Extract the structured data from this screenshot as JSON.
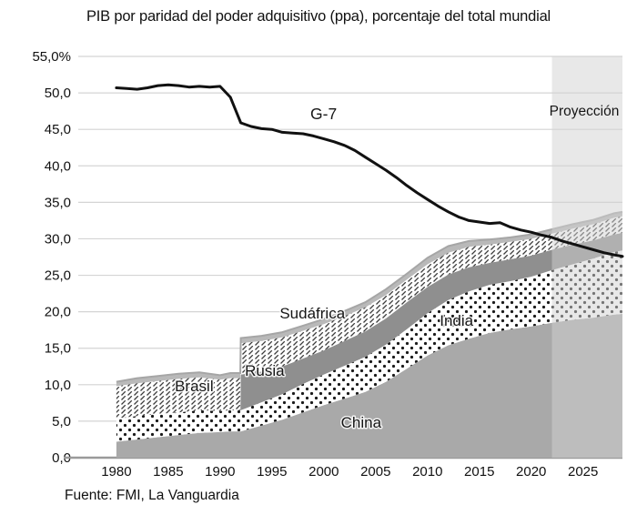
{
  "chart_data": {
    "type": "area",
    "title": "PIB por paridad del poder adquisitivo (ppa), porcentaje del total mundial",
    "source": "Fuente: FMI, La Vanguardia",
    "unit": "% del total mundial",
    "grid": true,
    "ylim": [
      0,
      55
    ],
    "xlim": [
      1976.5,
      2028.8
    ],
    "y_ticks": [
      55,
      50,
      45,
      40,
      35,
      30,
      25,
      20,
      15,
      10,
      5,
      0
    ],
    "y_tick_labels": [
      "55,0%",
      "50,0",
      "45,0",
      "40,0",
      "35,0",
      "30,0",
      "25,0",
      "20,0",
      "15,0",
      "10,0",
      "5,0",
      "0,0"
    ],
    "x_ticks": [
      1980,
      1985,
      1990,
      1995,
      2000,
      2005,
      2010,
      2015,
      2020,
      2025
    ],
    "x_tick_labels": [
      "1980",
      "1985",
      "1990",
      "1995",
      "2000",
      "2005",
      "2010",
      "2015",
      "2020",
      "2025"
    ],
    "grid_color": "#d4d4d4",
    "axis_color": "#9a9a9a",
    "top_edge_color": "#a6a6a6",
    "projection": {
      "label": "Proyección",
      "start_year": 2022,
      "band_fill": "rgba(210,210,210,0.5)"
    },
    "stacked_years": [
      1980,
      1982,
      1984,
      1986,
      1988,
      1990,
      1991,
      1991.95,
      1992,
      1994,
      1996,
      1998,
      2000,
      2002,
      2004,
      2006,
      2008,
      2010,
      2012,
      2014,
      2016,
      2018,
      2020,
      2022,
      2024,
      2026,
      2028,
      2028.8
    ],
    "stacked_series": [
      {
        "id": "china",
        "name": "China",
        "style": "solid",
        "fill": "#a9a9a9",
        "label_anchor": {
          "year": 2003.6,
          "value": 4.1
        },
        "values": [
          2.2,
          2.5,
          2.8,
          3.1,
          3.4,
          3.5,
          3.6,
          3.6,
          3.6,
          4.4,
          5.2,
          6.2,
          7.2,
          8.1,
          9.0,
          10.4,
          12.2,
          14.0,
          15.4,
          16.3,
          17.1,
          17.6,
          18.0,
          18.5,
          18.9,
          19.2,
          19.6,
          19.7
        ]
      },
      {
        "id": "india",
        "name": "India",
        "style": "dots",
        "fill": "#ffffff",
        "dot_color": "#1a1a1a",
        "label_anchor": {
          "year": 2012.8,
          "value": 18.1
        },
        "values": [
          3.2,
          3.2,
          3.2,
          3.1,
          3.1,
          2.9,
          2.9,
          2.9,
          2.9,
          3.2,
          3.5,
          3.9,
          4.2,
          4.5,
          4.8,
          5.1,
          5.4,
          5.8,
          6.2,
          6.5,
          6.6,
          6.6,
          6.8,
          7.2,
          7.6,
          8.1,
          8.6,
          8.7
        ]
      },
      {
        "id": "rusia",
        "name": "Rusia",
        "style": "solid",
        "fill": "#8f8f8f",
        "label_anchor": {
          "year": 1994.3,
          "value": 11.2
        },
        "values": [
          0,
          0,
          0,
          0,
          0,
          0,
          0,
          0,
          4.9,
          4.2,
          3.8,
          3.5,
          3.3,
          3.4,
          3.5,
          3.6,
          3.7,
          3.6,
          3.5,
          3.3,
          3.0,
          3.0,
          2.9,
          2.8,
          2.7,
          2.5,
          2.4,
          2.4
        ]
      },
      {
        "id": "brasil",
        "name": "Brasil",
        "style": "hatch",
        "fill": "#ffffff",
        "hatch_color": "#3c3c3c",
        "label_anchor": {
          "year": 1987.5,
          "value": 9.1
        },
        "values": [
          4.4,
          4.5,
          4.5,
          4.6,
          4.5,
          4.3,
          4.4,
          4.4,
          4.3,
          4.2,
          4.0,
          3.8,
          3.6,
          3.4,
          3.3,
          3.2,
          3.1,
          3.1,
          3.0,
          2.8,
          2.5,
          2.4,
          2.3,
          2.2,
          2.2,
          2.2,
          2.3,
          2.3
        ]
      },
      {
        "id": "sudafrica",
        "name": "Sudáfrica",
        "style": "solid",
        "fill": "#b9b9b9",
        "label_anchor": {
          "year": 1998.9,
          "value": 19.1
        },
        "values": [
          0.6,
          0.7,
          0.7,
          0.7,
          0.7,
          0.6,
          0.7,
          0.7,
          0.7,
          0.7,
          0.7,
          0.7,
          0.7,
          0.7,
          0.7,
          0.8,
          0.8,
          0.9,
          0.9,
          0.8,
          0.7,
          0.6,
          0.6,
          0.6,
          0.6,
          0.6,
          0.6,
          0.6
        ]
      }
    ],
    "line_series": {
      "name": "G-7",
      "color": "#111111",
      "points": [
        [
          1980,
          50.7
        ],
        [
          1981,
          50.6
        ],
        [
          1982,
          50.5
        ],
        [
          1983,
          50.7
        ],
        [
          1984,
          51.0
        ],
        [
          1985,
          51.1
        ],
        [
          1986,
          51.0
        ],
        [
          1987,
          50.8
        ],
        [
          1988,
          50.9
        ],
        [
          1989,
          50.8
        ],
        [
          1990,
          50.9
        ],
        [
          1991,
          49.4
        ],
        [
          1992,
          45.9
        ],
        [
          1993,
          45.4
        ],
        [
          1994,
          45.1
        ],
        [
          1995,
          45.0
        ],
        [
          1996,
          44.6
        ],
        [
          1997,
          44.5
        ],
        [
          1998,
          44.4
        ],
        [
          1999,
          44.1
        ],
        [
          2000,
          43.7
        ],
        [
          2001,
          43.3
        ],
        [
          2002,
          42.8
        ],
        [
          2003,
          42.1
        ],
        [
          2004,
          41.2
        ],
        [
          2005,
          40.3
        ],
        [
          2006,
          39.4
        ],
        [
          2007,
          38.4
        ],
        [
          2008,
          37.3
        ],
        [
          2009,
          36.3
        ],
        [
          2010,
          35.4
        ],
        [
          2011,
          34.5
        ],
        [
          2012,
          33.7
        ],
        [
          2013,
          33.0
        ],
        [
          2014,
          32.5
        ],
        [
          2015,
          32.3
        ],
        [
          2016,
          32.1
        ],
        [
          2017,
          32.2
        ],
        [
          2018,
          31.6
        ],
        [
          2019,
          31.2
        ],
        [
          2020,
          30.9
        ],
        [
          2021,
          30.5
        ],
        [
          2022,
          30.2
        ],
        [
          2023,
          29.7
        ],
        [
          2024,
          29.3
        ],
        [
          2025,
          28.9
        ],
        [
          2026,
          28.5
        ],
        [
          2027,
          28.1
        ],
        [
          2028,
          27.8
        ],
        [
          2028.8,
          27.6
        ]
      ]
    }
  }
}
